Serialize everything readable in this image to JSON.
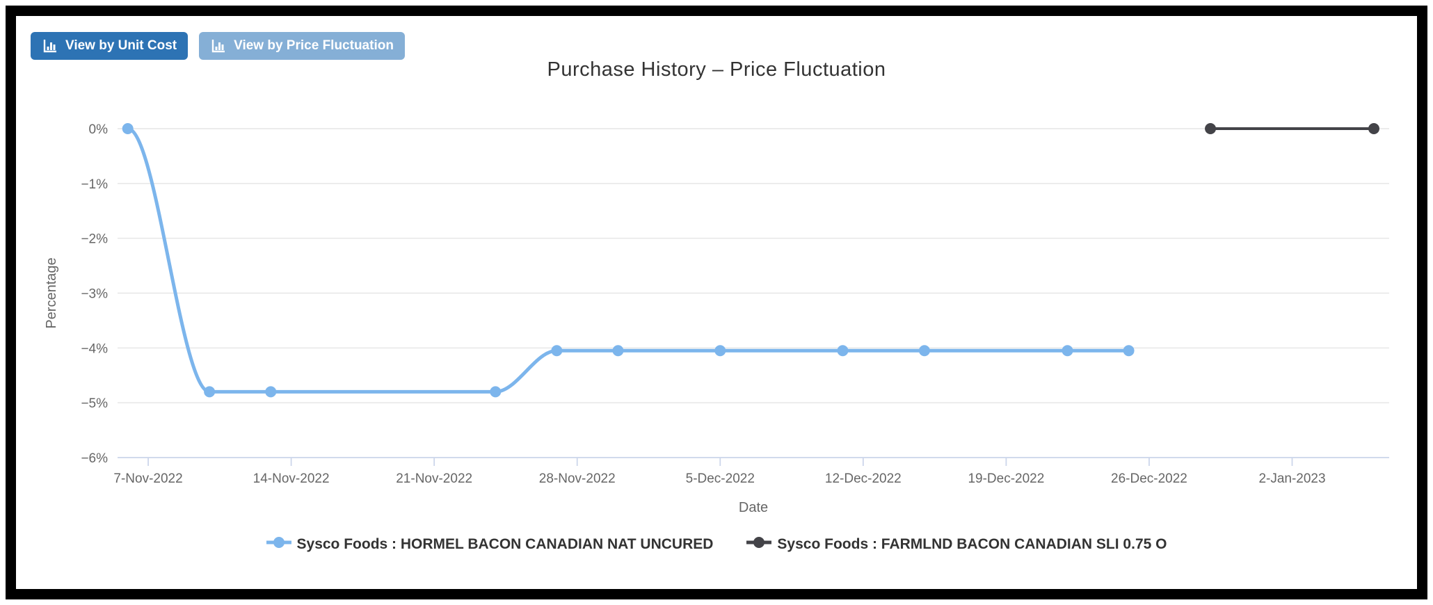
{
  "toolbar": {
    "buttons": [
      {
        "label": "View by Unit Cost",
        "icon": "bar-chart-icon",
        "bg": "#2d73b4"
      },
      {
        "label": "View by Price Fluctuation",
        "icon": "bar-chart-icon",
        "bg": "#85afd6"
      }
    ]
  },
  "chart_data": {
    "type": "line",
    "title": "Purchase History – Price Fluctuation",
    "xlabel": "Date",
    "ylabel": "Percentage",
    "ylim": [
      -6,
      0
    ],
    "grid": true,
    "legend_position": "bottom",
    "x_domain": [
      "2022-11-05T12:00:00Z",
      "2023-01-06T18:00:00Z"
    ],
    "y_ticks": [
      {
        "value": 0,
        "label": "0%"
      },
      {
        "value": -1,
        "label": "−1%"
      },
      {
        "value": -2,
        "label": "−2%"
      },
      {
        "value": -3,
        "label": "−3%"
      },
      {
        "value": -4,
        "label": "−4%"
      },
      {
        "value": -5,
        "label": "−5%"
      },
      {
        "value": -6,
        "label": "−6%"
      }
    ],
    "x_ticks": [
      {
        "date": "2022-11-07",
        "label": "7-Nov-2022"
      },
      {
        "date": "2022-11-14",
        "label": "14-Nov-2022"
      },
      {
        "date": "2022-11-21",
        "label": "21-Nov-2022"
      },
      {
        "date": "2022-11-28",
        "label": "28-Nov-2022"
      },
      {
        "date": "2022-12-05",
        "label": "5-Dec-2022"
      },
      {
        "date": "2022-12-12",
        "label": "12-Dec-2022"
      },
      {
        "date": "2022-12-19",
        "label": "19-Dec-2022"
      },
      {
        "date": "2022-12-26",
        "label": "26-Dec-2022"
      },
      {
        "date": "2023-01-02",
        "label": "2-Jan-2023"
      }
    ],
    "series": [
      {
        "name": "Sysco Foods : HORMEL BACON CANADIAN NAT UNCURED",
        "color": "#7cb5ec",
        "points": [
          {
            "date": "2022-11-06",
            "value": 0
          },
          {
            "date": "2022-11-10",
            "value": -4.8
          },
          {
            "date": "2022-11-13",
            "value": -4.8
          },
          {
            "date": "2022-11-24",
            "value": -4.8
          },
          {
            "date": "2022-11-27",
            "value": -4.05
          },
          {
            "date": "2022-11-30",
            "value": -4.05
          },
          {
            "date": "2022-12-05",
            "value": -4.05
          },
          {
            "date": "2022-12-11",
            "value": -4.05
          },
          {
            "date": "2022-12-15",
            "value": -4.05
          },
          {
            "date": "2022-12-22",
            "value": -4.05
          },
          {
            "date": "2022-12-25",
            "value": -4.05
          }
        ]
      },
      {
        "name": "Sysco Foods : FARMLND BACON CANADIAN SLI 0.75 O",
        "color": "#434348",
        "points": [
          {
            "date": "2022-12-29",
            "value": 0
          },
          {
            "date": "2023-01-06",
            "value": 0
          }
        ]
      }
    ],
    "colors": {
      "grid_line": "#e6e6e6",
      "axis_line": "#ccd6eb",
      "axis_label": "#666666",
      "title_text": "#333333"
    }
  }
}
